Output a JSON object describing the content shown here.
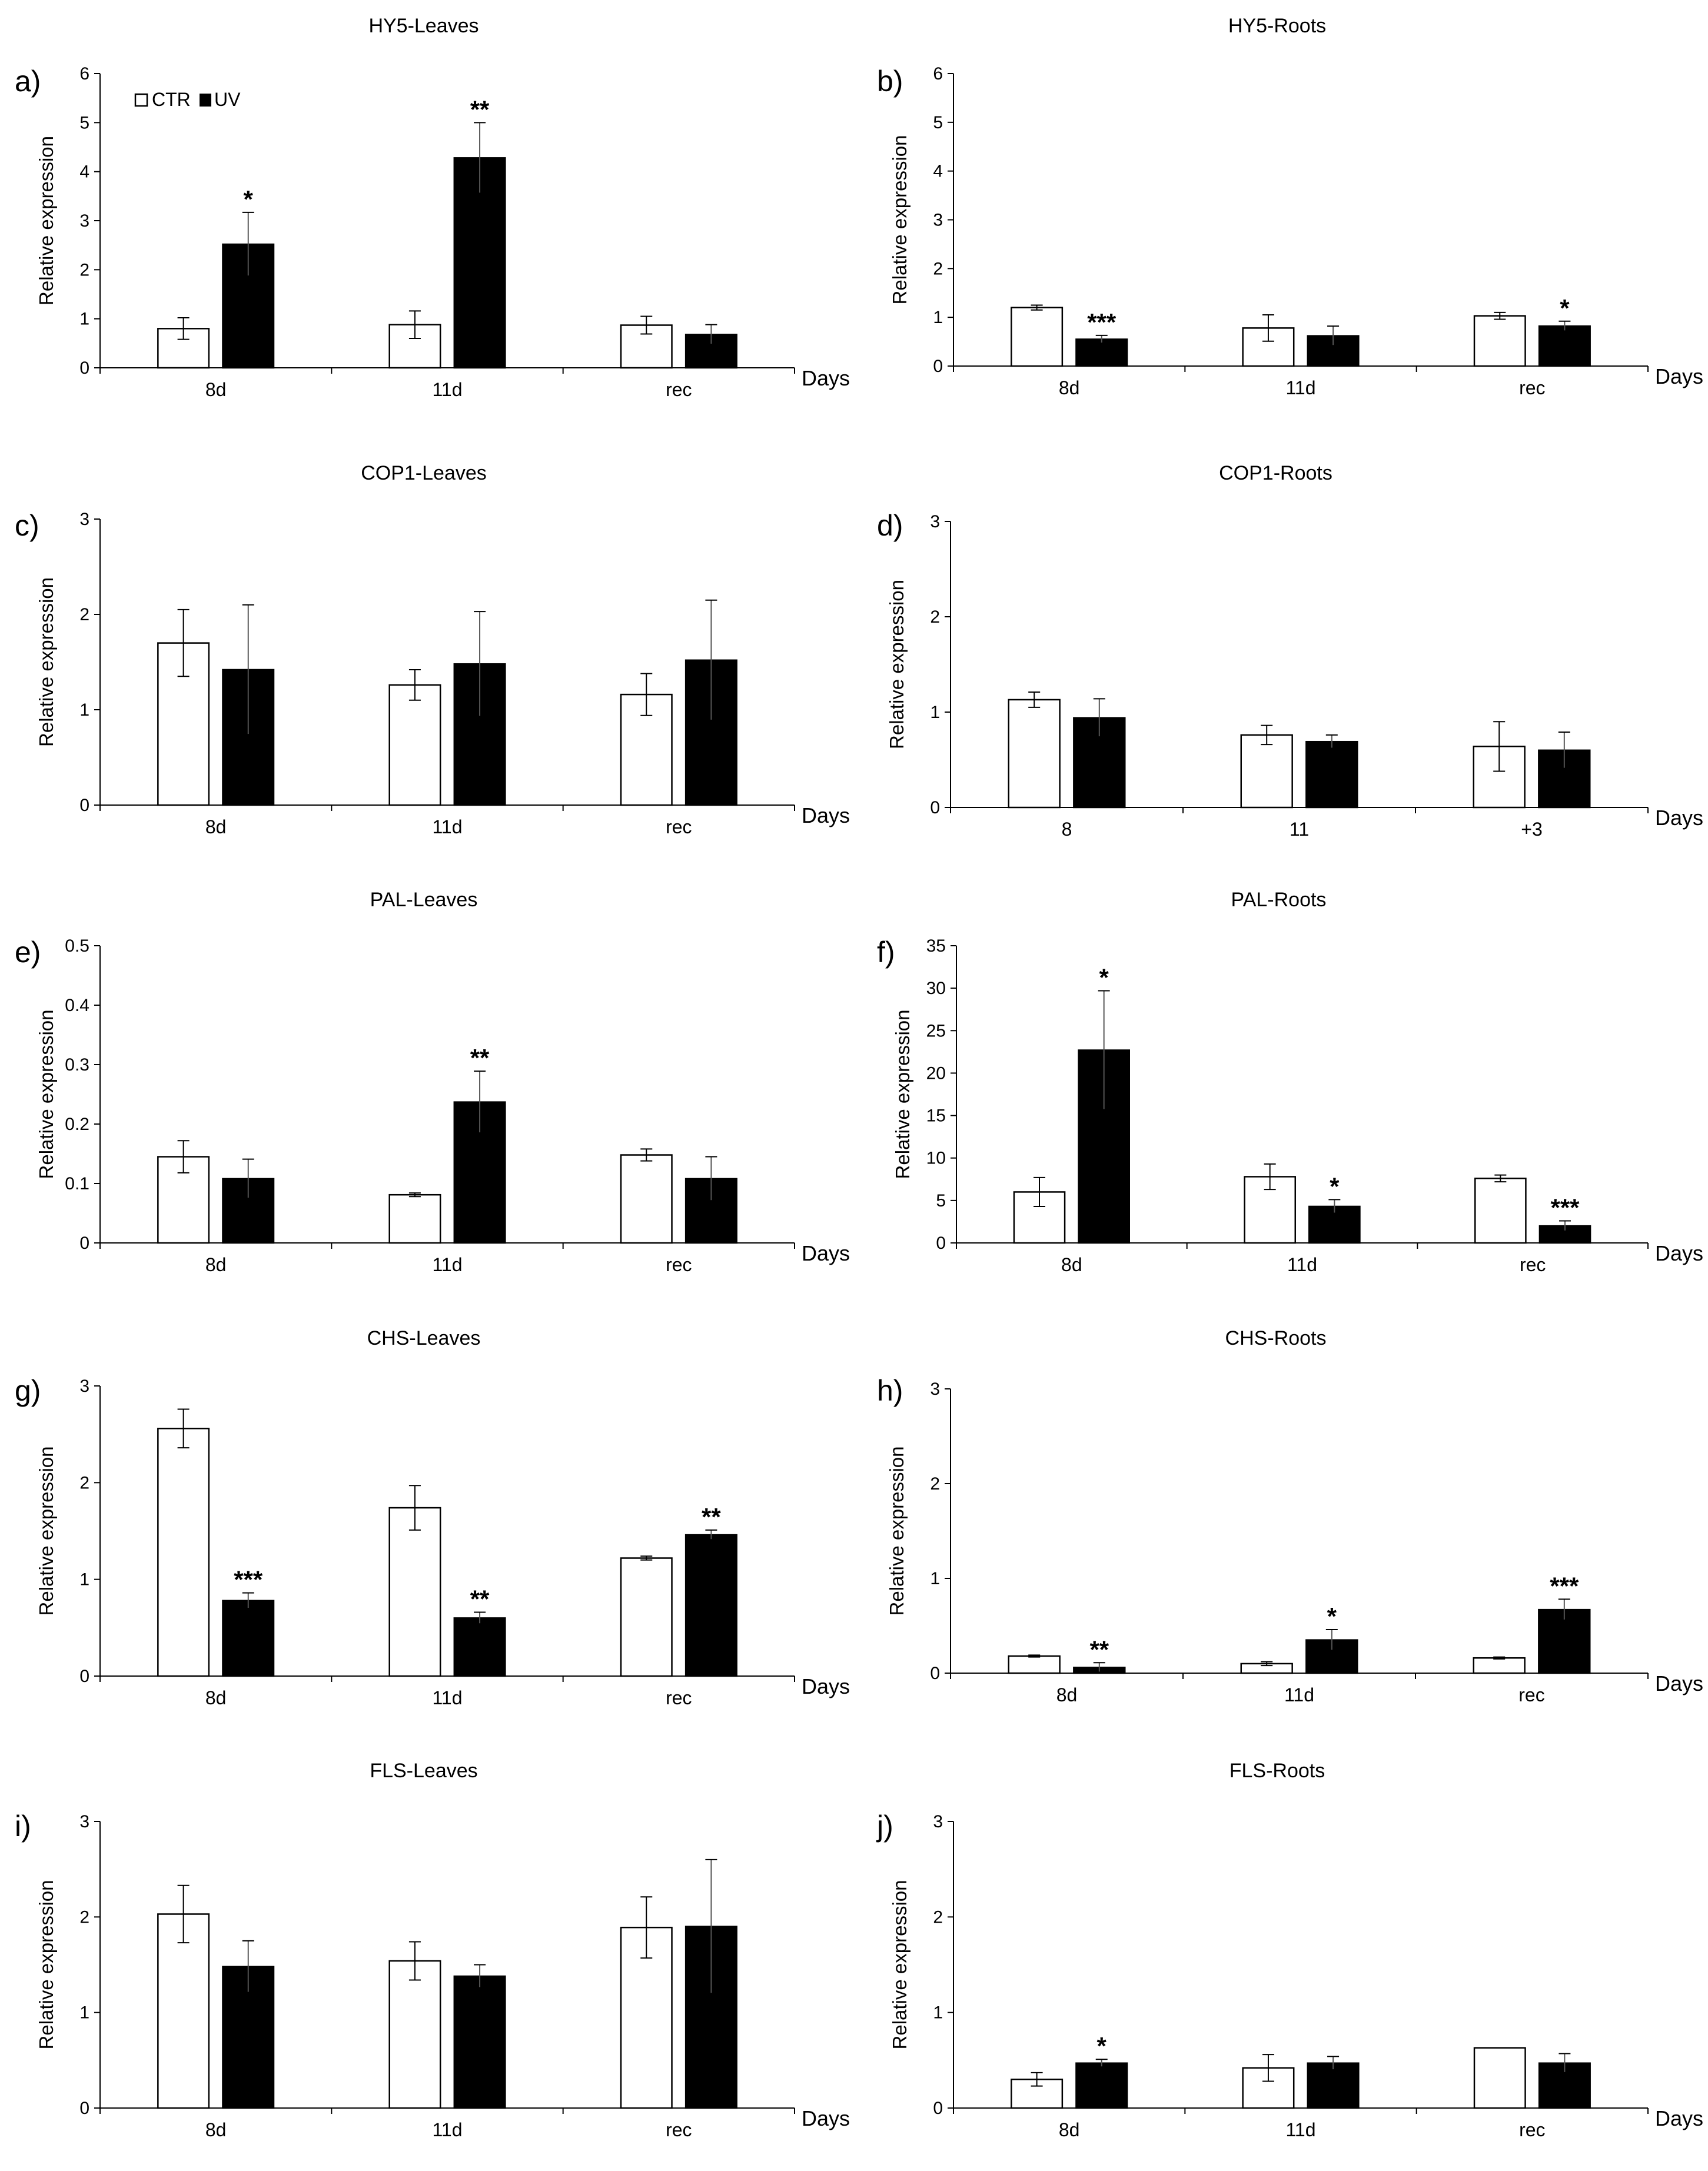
{
  "chart_data": [
    {
      "type": "bar",
      "panel": "a)",
      "title": "HY5-Leaves",
      "ylabel": "Relative expression",
      "xlabel": "Days",
      "categories": [
        "8d",
        "11d",
        "rec"
      ],
      "ylim": [
        0,
        6
      ],
      "yticks": [
        0,
        1,
        2,
        3,
        4,
        5,
        6
      ],
      "legend": [
        "CTR",
        "UV"
      ],
      "series": [
        {
          "name": "CTR",
          "values": [
            0.8,
            0.88,
            0.87
          ],
          "errors": [
            0.22,
            0.28,
            0.18
          ]
        },
        {
          "name": "UV",
          "values": [
            2.52,
            4.28,
            0.68
          ],
          "errors": [
            0.65,
            0.72,
            0.2
          ]
        }
      ],
      "annotations": [
        {
          "series": "UV",
          "category": "8d",
          "text": "*"
        },
        {
          "series": "UV",
          "category": "11d",
          "text": "**"
        }
      ]
    },
    {
      "type": "bar",
      "panel": "b)",
      "title": "HY5-Roots",
      "ylabel": "Relative expression",
      "xlabel": "Days",
      "categories": [
        "8d",
        "11d",
        "rec"
      ],
      "ylim": [
        0,
        6
      ],
      "yticks": [
        0,
        1,
        2,
        3,
        4,
        5,
        6
      ],
      "series": [
        {
          "name": "CTR",
          "values": [
            1.2,
            0.78,
            1.03
          ],
          "errors": [
            0.05,
            0.27,
            0.07
          ]
        },
        {
          "name": "UV",
          "values": [
            0.55,
            0.62,
            0.82
          ],
          "errors": [
            0.08,
            0.2,
            0.1
          ]
        }
      ],
      "annotations": [
        {
          "series": "UV",
          "category": "8d",
          "text": "***"
        },
        {
          "series": "UV",
          "category": "rec",
          "text": "*"
        }
      ]
    },
    {
      "type": "bar",
      "panel": "c)",
      "title": "COP1-Leaves",
      "ylabel": "Relative expression",
      "xlabel": "Days",
      "categories": [
        "8d",
        "11d",
        "rec"
      ],
      "ylim": [
        0,
        3
      ],
      "yticks": [
        0,
        1,
        2,
        3
      ],
      "series": [
        {
          "name": "CTR",
          "values": [
            1.7,
            1.26,
            1.16
          ],
          "errors": [
            0.35,
            0.16,
            0.22
          ]
        },
        {
          "name": "UV",
          "values": [
            1.42,
            1.48,
            1.52
          ],
          "errors": [
            0.68,
            0.55,
            0.63
          ]
        }
      ],
      "annotations": []
    },
    {
      "type": "bar",
      "panel": "d)",
      "title": "COP1-Roots",
      "ylabel": "Relative expression",
      "xlabel": "Days",
      "categories": [
        "8",
        "11",
        "+3"
      ],
      "ylim": [
        0,
        3
      ],
      "yticks": [
        0,
        1,
        2,
        3
      ],
      "series": [
        {
          "name": "CTR",
          "values": [
            1.13,
            0.76,
            0.64
          ],
          "errors": [
            0.08,
            0.1,
            0.26
          ]
        },
        {
          "name": "UV",
          "values": [
            0.94,
            0.69,
            0.6
          ],
          "errors": [
            0.2,
            0.07,
            0.19
          ]
        }
      ],
      "annotations": []
    },
    {
      "type": "bar",
      "panel": "e)",
      "title": "PAL-Leaves",
      "ylabel": "Relative expression",
      "xlabel": "Days",
      "categories": [
        "8d",
        "11d",
        "rec"
      ],
      "ylim": [
        0,
        0.5
      ],
      "yticks": [
        0,
        0.1,
        0.2,
        0.3,
        0.4,
        0.5
      ],
      "series": [
        {
          "name": "CTR",
          "values": [
            0.145,
            0.081,
            0.148
          ],
          "errors": [
            0.027,
            0.003,
            0.01
          ]
        },
        {
          "name": "UV",
          "values": [
            0.108,
            0.237,
            0.108
          ],
          "errors": [
            0.033,
            0.052,
            0.037
          ]
        }
      ],
      "annotations": [
        {
          "series": "UV",
          "category": "11d",
          "text": "**"
        }
      ]
    },
    {
      "type": "bar",
      "panel": "f)",
      "title": "PAL-Roots",
      "ylabel": "Relative expression",
      "xlabel": "Days",
      "categories": [
        "8d",
        "11d",
        "rec"
      ],
      "ylim": [
        0,
        35
      ],
      "yticks": [
        0,
        5,
        10,
        15,
        20,
        25,
        30,
        35
      ],
      "series": [
        {
          "name": "CTR",
          "values": [
            6.0,
            7.8,
            7.6
          ],
          "errors": [
            1.7,
            1.5,
            0.4
          ]
        },
        {
          "name": "UV",
          "values": [
            22.7,
            4.3,
            2.0
          ],
          "errors": [
            7.0,
            0.8,
            0.6
          ]
        }
      ],
      "annotations": [
        {
          "series": "UV",
          "category": "8d",
          "text": "*"
        },
        {
          "series": "UV",
          "category": "11d",
          "text": "*"
        },
        {
          "series": "UV",
          "category": "rec",
          "text": "***"
        }
      ]
    },
    {
      "type": "bar",
      "panel": "g)",
      "title": "CHS-Leaves",
      "ylabel": "Relative expression",
      "xlabel": "Days",
      "categories": [
        "8d",
        "11d",
        "rec"
      ],
      "ylim": [
        0,
        3
      ],
      "yticks": [
        0,
        1,
        2,
        3
      ],
      "series": [
        {
          "name": "CTR",
          "values": [
            2.56,
            1.74,
            1.22
          ],
          "errors": [
            0.2,
            0.23,
            0.02
          ]
        },
        {
          "name": "UV",
          "values": [
            0.78,
            0.6,
            1.46
          ],
          "errors": [
            0.08,
            0.06,
            0.05
          ]
        }
      ],
      "annotations": [
        {
          "series": "UV",
          "category": "8d",
          "text": "***"
        },
        {
          "series": "UV",
          "category": "11d",
          "text": "**"
        },
        {
          "series": "UV",
          "category": "rec",
          "text": "**"
        }
      ]
    },
    {
      "type": "bar",
      "panel": "h)",
      "title": "CHS-Roots",
      "ylabel": "Relative expression",
      "xlabel": "Days",
      "categories": [
        "8d",
        "11d",
        "rec"
      ],
      "ylim": [
        0,
        3
      ],
      "yticks": [
        0,
        1,
        2,
        3
      ],
      "series": [
        {
          "name": "CTR",
          "values": [
            0.18,
            0.1,
            0.16
          ],
          "errors": [
            0.01,
            0.02,
            0.01
          ]
        },
        {
          "name": "UV",
          "values": [
            0.06,
            0.35,
            0.67
          ],
          "errors": [
            0.05,
            0.11,
            0.11
          ]
        }
      ],
      "annotations": [
        {
          "series": "UV",
          "category": "8d",
          "text": "**"
        },
        {
          "series": "UV",
          "category": "11d",
          "text": "*"
        },
        {
          "series": "UV",
          "category": "rec",
          "text": "***"
        }
      ]
    },
    {
      "type": "bar",
      "panel": "i)",
      "title": "FLS-Leaves",
      "ylabel": "Relative expression",
      "xlabel": "Days",
      "categories": [
        "8d",
        "11d",
        "rec"
      ],
      "ylim": [
        0,
        3
      ],
      "yticks": [
        0,
        1,
        2,
        3
      ],
      "series": [
        {
          "name": "CTR",
          "values": [
            2.03,
            1.54,
            1.89
          ],
          "errors": [
            0.3,
            0.2,
            0.32
          ]
        },
        {
          "name": "UV",
          "values": [
            1.48,
            1.38,
            1.9
          ],
          "errors": [
            0.27,
            0.12,
            0.7
          ]
        }
      ],
      "annotations": []
    },
    {
      "type": "bar",
      "panel": "j)",
      "title": "FLS-Roots",
      "ylabel": "Relative expression",
      "xlabel": "Days",
      "categories": [
        "8d",
        "11d",
        "rec"
      ],
      "ylim": [
        0,
        3
      ],
      "yticks": [
        0,
        1,
        2,
        3
      ],
      "series": [
        {
          "name": "CTR",
          "values": [
            0.3,
            0.42,
            0.63
          ],
          "errors": [
            0.07,
            0.14,
            0.0
          ]
        },
        {
          "name": "UV",
          "values": [
            0.47,
            0.47,
            0.47
          ],
          "errors": [
            0.04,
            0.07,
            0.1
          ]
        }
      ],
      "annotations": [
        {
          "series": "UV",
          "category": "8d",
          "text": "*"
        }
      ]
    }
  ]
}
